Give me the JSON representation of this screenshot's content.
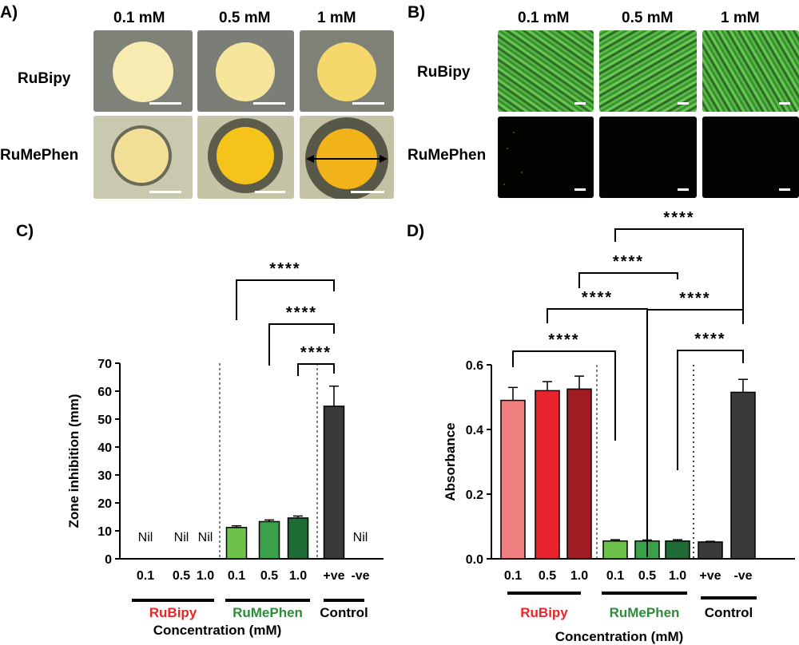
{
  "panelA": {
    "letter": "A)",
    "columns": [
      "0.1 mM",
      "0.5 mM",
      "1 mM"
    ],
    "rows": [
      "RuBipy",
      "RuMePhen"
    ]
  },
  "panelB": {
    "letter": "B)",
    "columns": [
      "0.1 mM",
      "0.5 mM",
      "1 mM"
    ],
    "rows": [
      "RuBipy",
      "RuMePhen"
    ]
  },
  "colors": {
    "rubipy_label": "#e8262a",
    "rumephen_label": "#2e8b3a",
    "rubipy_bars": [
      "#f08080",
      "#e8232b",
      "#9e1c22"
    ],
    "rumephen_bars": [
      "#6cc24a",
      "#3aa14a",
      "#1f6b35"
    ],
    "control_dark": "#3a3a3a"
  },
  "chart_data": [
    {
      "type": "bar",
      "panel": "C)",
      "title": "",
      "xlabel": "Concentration (mM)",
      "ylabel": "Zone inhibition (mm)",
      "ylim": [
        0,
        70
      ],
      "yticks": [
        0,
        10,
        20,
        30,
        40,
        50,
        60,
        70
      ],
      "categories": [
        "0.1",
        "0.5",
        "1.0",
        "0.1",
        "0.5",
        "1.0",
        "+ve",
        "-ve"
      ],
      "groups": [
        {
          "name": "RuBipy",
          "indices": [
            0,
            1,
            2
          ]
        },
        {
          "name": "RuMePhen",
          "indices": [
            3,
            4,
            5
          ]
        },
        {
          "name": "Control",
          "indices": [
            6,
            7
          ]
        }
      ],
      "values": [
        0,
        0,
        0,
        11.2,
        13.3,
        14.6,
        54.6,
        0
      ],
      "errors": [
        0,
        0,
        0,
        0.6,
        0.6,
        0.7,
        7.2,
        0
      ],
      "nil_label": "Nil",
      "nil_indices": [
        0,
        1,
        2,
        7
      ],
      "significance": [
        {
          "from": 3,
          "to": 6,
          "label": "****"
        },
        {
          "from": 4,
          "to": 6,
          "label": "****"
        },
        {
          "from": 5,
          "to": 6,
          "label": "****"
        }
      ]
    },
    {
      "type": "bar",
      "panel": "D)",
      "title": "",
      "xlabel": "Concentration (mM)",
      "ylabel": "Absorbance",
      "ylim": [
        0,
        0.6
      ],
      "yticks": [
        0.0,
        0.2,
        0.4,
        0.6
      ],
      "categories": [
        "0.1",
        "0.5",
        "1.0",
        "0.1",
        "0.5",
        "1.0",
        "+ve",
        "-ve"
      ],
      "groups": [
        {
          "name": "RuBipy",
          "indices": [
            0,
            1,
            2
          ]
        },
        {
          "name": "RuMePhen",
          "indices": [
            3,
            4,
            5
          ]
        },
        {
          "name": "Control",
          "indices": [
            6,
            7
          ]
        }
      ],
      "values": [
        0.49,
        0.52,
        0.525,
        0.055,
        0.055,
        0.055,
        0.052,
        0.515
      ],
      "errors": [
        0.04,
        0.028,
        0.04,
        0.004,
        0.003,
        0.004,
        0.002,
        0.04
      ],
      "significance": [
        {
          "from": 0,
          "to": 3,
          "label": "****"
        },
        {
          "from": 1,
          "to": 4,
          "label": "****"
        },
        {
          "from": 2,
          "to": 5,
          "label": "****"
        },
        {
          "from": 3,
          "to": 7,
          "label": "****"
        },
        {
          "from": 4,
          "to": 7,
          "label": "****"
        },
        {
          "from": 5,
          "to": 7,
          "label": "****"
        }
      ]
    }
  ]
}
